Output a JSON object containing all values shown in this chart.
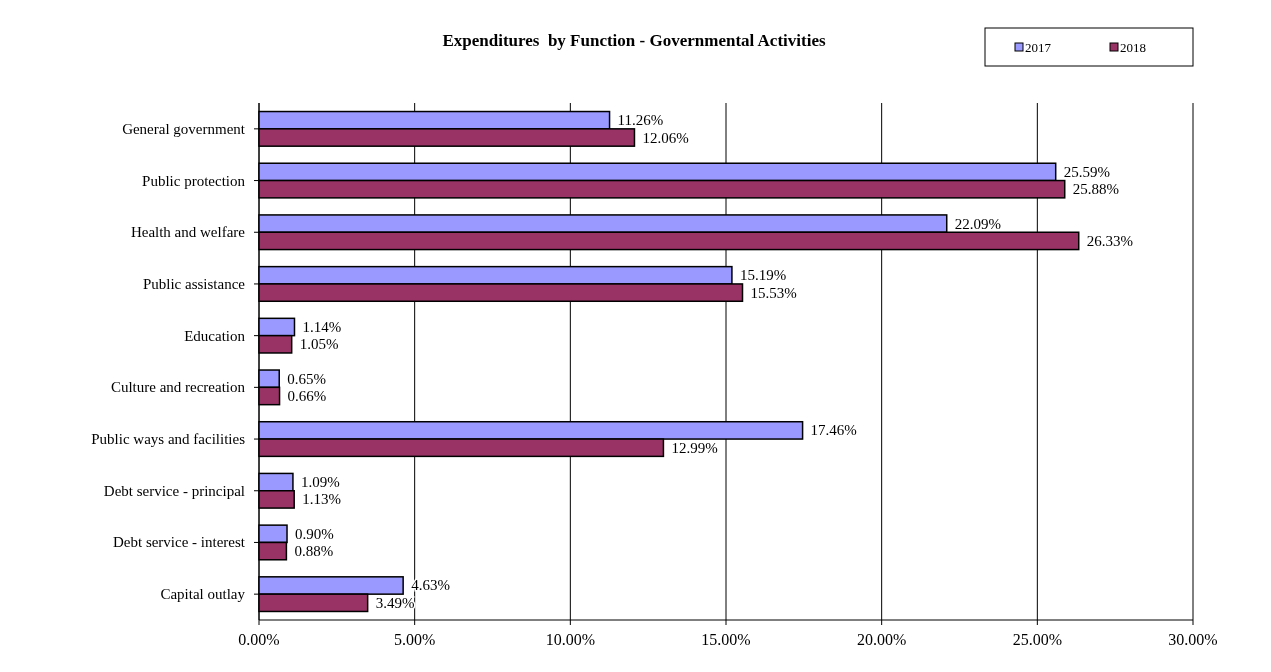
{
  "chart_data": {
    "type": "bar",
    "orientation": "horizontal",
    "title": "Expenditures  by Function - Governmental Activities",
    "categories": [
      "General government",
      "Public protection",
      "Health and welfare",
      "Public assistance",
      "Education",
      "Culture and recreation",
      "Public ways and facilities",
      "Debt service - principal",
      "Debt service - interest",
      "Capital outlay"
    ],
    "series": [
      {
        "name": "2017",
        "color": "#9999ff",
        "values": [
          11.26,
          25.59,
          22.09,
          15.19,
          1.14,
          0.65,
          17.46,
          1.09,
          0.9,
          4.63
        ],
        "value_labels": [
          "11.26%",
          "25.59%",
          "22.09%",
          "15.19%",
          "1.14%",
          "0.65%",
          "17.46%",
          "1.09%",
          "0.90%",
          "4.63%"
        ]
      },
      {
        "name": "2018",
        "color": "#993366",
        "values": [
          12.06,
          25.88,
          26.33,
          15.53,
          1.05,
          0.66,
          12.99,
          1.13,
          0.88,
          3.49
        ],
        "value_labels": [
          "12.06%",
          "25.88%",
          "26.33%",
          "15.53%",
          "1.05%",
          "0.66%",
          "12.99%",
          "1.13%",
          "0.88%",
          "3.49%"
        ]
      }
    ],
    "xlim": [
      0,
      30
    ],
    "xticks": [
      {
        "value": 0,
        "label": "0.00%"
      },
      {
        "value": 5,
        "label": "5.00%"
      },
      {
        "value": 10,
        "label": "10.00%"
      },
      {
        "value": 15,
        "label": "15.00%"
      },
      {
        "value": 20,
        "label": "20.00%"
      },
      {
        "value": 25,
        "label": "25.00%"
      },
      {
        "value": 30,
        "label": "30.00%"
      }
    ],
    "grid": "x",
    "legend": "top right"
  }
}
